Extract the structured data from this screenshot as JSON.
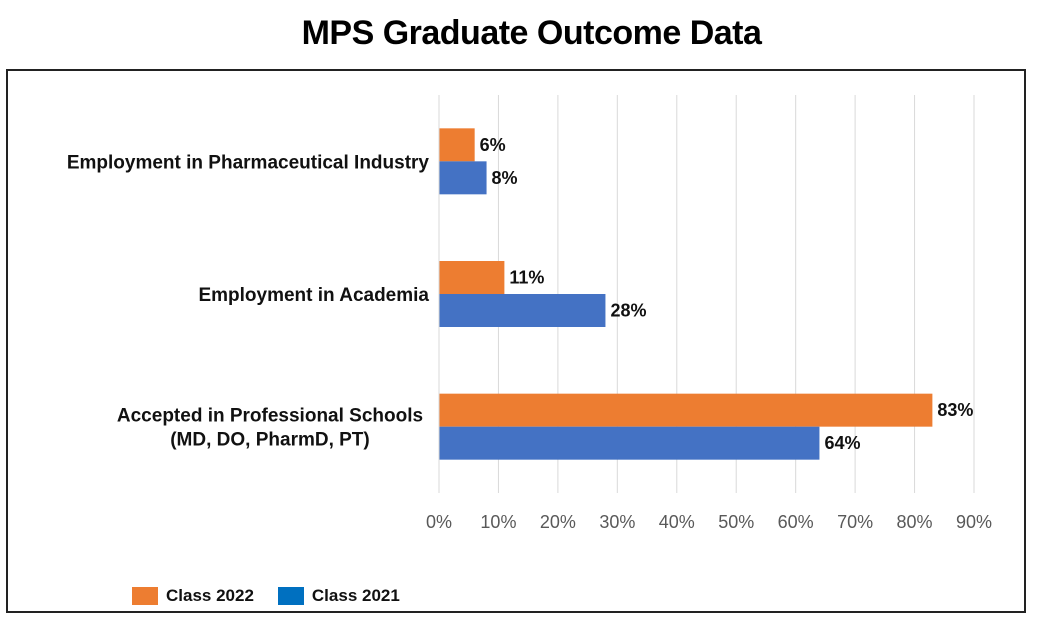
{
  "chart_data": {
    "type": "bar",
    "orientation": "horizontal",
    "title": "MPS Graduate Outcome Data",
    "categories": [
      "Employment in Pharmaceutical Industry",
      "Employment in Academia",
      "Accepted in Professional Schools\n(MD, DO, PharmD, PT)"
    ],
    "series": [
      {
        "name": "Class 2022",
        "color": "#ED7D31",
        "values": [
          6,
          11,
          83
        ]
      },
      {
        "name": "Class 2021",
        "color": "#4472C4",
        "values": [
          8,
          28,
          64
        ]
      }
    ],
    "xlim": [
      0,
      90
    ],
    "x_ticks": [
      "0%",
      "10%",
      "20%",
      "30%",
      "40%",
      "50%",
      "60%",
      "70%",
      "80%",
      "90%"
    ],
    "value_suffix": "%",
    "grid": "vertical",
    "legend_position": "bottom-left",
    "legend": [
      {
        "label": "Class 2022",
        "color": "#ED7D31"
      },
      {
        "label": "Class 2021",
        "color": "#0070C0"
      }
    ]
  }
}
